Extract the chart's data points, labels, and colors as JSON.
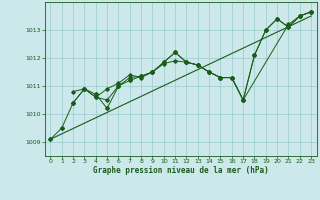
{
  "title": "Graphe pression niveau de la mer (hPa)",
  "bg_color": "#cce8ea",
  "grid_color": "#99cccc",
  "line_color": "#1a5c1a",
  "marker_color": "#1a5c1a",
  "xlim": [
    -0.5,
    23.5
  ],
  "ylim": [
    1008.5,
    1014.0
  ],
  "yticks": [
    1009,
    1010,
    1011,
    1012,
    1013
  ],
  "xticks": [
    0,
    1,
    2,
    3,
    4,
    5,
    6,
    7,
    8,
    9,
    10,
    11,
    12,
    13,
    14,
    15,
    16,
    17,
    18,
    19,
    20,
    21,
    22,
    23
  ],
  "series_main": {
    "x": [
      0,
      1,
      2,
      3,
      4,
      5,
      6,
      7,
      8,
      9,
      10,
      11,
      12,
      13,
      14,
      15,
      16,
      17,
      18,
      19,
      20,
      21,
      22,
      23
    ],
    "y": [
      1009.1,
      1009.5,
      1010.4,
      1010.9,
      1010.7,
      1010.2,
      1011.0,
      1011.2,
      1011.35,
      1011.5,
      1011.85,
      1012.2,
      1011.85,
      1011.75,
      1011.5,
      1011.3,
      1011.3,
      1010.5,
      1012.1,
      1013.0,
      1013.4,
      1013.1,
      1013.5,
      1013.65
    ]
  },
  "series2": {
    "x": [
      2,
      3,
      4,
      5,
      6,
      7,
      8,
      9,
      10,
      11,
      12,
      13,
      14,
      15,
      16,
      17,
      21,
      22,
      23
    ],
    "y": [
      1010.8,
      1010.9,
      1010.6,
      1010.9,
      1011.1,
      1011.4,
      1011.3,
      1011.5,
      1011.8,
      1011.9,
      1011.85,
      1011.75,
      1011.5,
      1011.3,
      1011.3,
      1010.5,
      1013.2,
      1013.5,
      1013.65
    ]
  },
  "series3": {
    "x": [
      2,
      3,
      4,
      5,
      6,
      7,
      8,
      9,
      10,
      11,
      12,
      13,
      14,
      15,
      16,
      17,
      18,
      19,
      20,
      21,
      22,
      23
    ],
    "y": [
      1010.4,
      1010.9,
      1010.6,
      1010.5,
      1011.0,
      1011.3,
      1011.35,
      1011.5,
      1011.85,
      1012.2,
      1011.85,
      1011.75,
      1011.5,
      1011.3,
      1011.3,
      1010.5,
      1012.1,
      1013.0,
      1013.4,
      1013.1,
      1013.5,
      1013.65
    ]
  },
  "trend_x": [
    0,
    23
  ],
  "trend_y": [
    1009.1,
    1013.5
  ]
}
